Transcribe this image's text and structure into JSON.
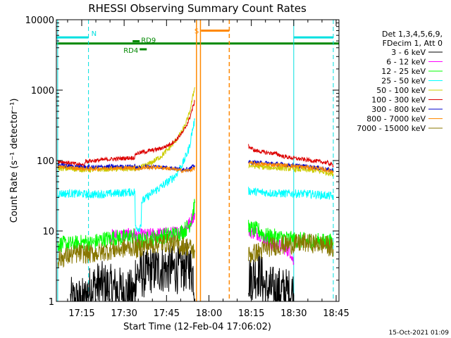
{
  "chart_data": {
    "type": "line",
    "title": "RHESSI Observing Summary Count Rates",
    "xlabel": "Start Time (12-Feb-04 17:06:02)",
    "ylabel": "Count Rate (s⁻¹ detector⁻¹)",
    "x_range_min": [
      6.03,
      106
    ],
    "ylim": [
      1,
      10000
    ],
    "y_scale": "log",
    "x_tick_labels": [
      "17:15",
      "17:30",
      "17:45",
      "18:00",
      "18:15",
      "18:30",
      "18:45"
    ],
    "x_tick_min": [
      15,
      30,
      45,
      60,
      75,
      90,
      105
    ],
    "y_tick_labels": [
      "1",
      "10",
      "100",
      "1000",
      "10000"
    ],
    "y_tick_values": [
      1,
      10,
      100,
      1000,
      10000
    ],
    "legend": {
      "placement": "right",
      "header": [
        "Det 1,3,4,5,6,9,",
        "FDecim 1, Att 0"
      ],
      "entries": [
        {
          "label": "3 - 6 keV",
          "color": "#000000"
        },
        {
          "label": "6 - 12 keV",
          "color": "#ff00ff"
        },
        {
          "label": "12 - 25 keV",
          "color": "#00ff00"
        },
        {
          "label": "25 - 50 keV",
          "color": "#00ffff"
        },
        {
          "label": "50 - 100 keV",
          "color": "#cccc00"
        },
        {
          "label": "100 - 300 keV",
          "color": "#dd0000"
        },
        {
          "label": "300 - 800 keV",
          "color": "#0000cc"
        },
        {
          "label": "800 - 7000 keV",
          "color": "#ff8800"
        },
        {
          "label": "7000 - 15000 keV",
          "color": "#887700"
        }
      ]
    },
    "flags": [
      {
        "label": "N",
        "color": "#00e0e0",
        "segments": [
          [
            6.03,
            17.4
          ],
          [
            90.0,
            104.0
          ]
        ],
        "y": 5600
      },
      {
        "label": "S",
        "color": "#ff8800",
        "segments": [
          [
            57.2,
            67.2
          ]
        ],
        "y": 7000
      },
      {
        "label": "",
        "color": "#008800",
        "segments": [
          [
            6.03,
            106
          ]
        ],
        "y": 4600
      },
      {
        "label": "RD9",
        "color": "#008800",
        "segments": [
          [
            33.0,
            35.5
          ]
        ],
        "y": 4950
      },
      {
        "label": "RD4",
        "color": "#008800",
        "segments": [
          [
            35.5,
            38.0
          ]
        ],
        "y": 3800
      }
    ],
    "vertical_markers": [
      {
        "color": "#00e0e0",
        "style": "solid",
        "x": 6.5
      },
      {
        "color": "#00e0e0",
        "style": "dashed",
        "x": 17.4
      },
      {
        "color": "#00e0e0",
        "style": "solid",
        "x": 90.0
      },
      {
        "color": "#00e0e0",
        "style": "dashed",
        "x": 104.0
      },
      {
        "color": "#ff8800",
        "style": "solid",
        "x": 55.6
      },
      {
        "color": "#ff8800",
        "style": "solid",
        "x": 57.0
      },
      {
        "color": "#ff8800",
        "style": "dashed",
        "x": 67.2
      }
    ],
    "series": [
      {
        "name": "3 - 6 keV",
        "color": "#000000",
        "noise": 0.35,
        "segments": [
          [
            [
              11.0,
              1.0
            ],
            [
              16.0,
              1.0
            ],
            [
              17.0,
              1.3
            ],
            [
              18.5,
              1.6
            ],
            [
              22.0,
              1.7
            ],
            [
              26.0,
              1.5
            ],
            [
              29.0,
              1.4
            ],
            [
              32.0,
              1.3
            ],
            [
              33.8,
              1.3
            ],
            [
              34.0,
              2.5
            ],
            [
              38.0,
              2.4
            ],
            [
              39.0,
              2.8
            ],
            [
              44.0,
              2.9
            ],
            [
              50.0,
              2.8
            ],
            [
              53.0,
              3.3
            ],
            [
              54.5,
              2.4
            ],
            [
              55.0,
              1.0
            ]
          ],
          [
            [
              74.0,
              2.2
            ],
            [
              78.0,
              2.5
            ],
            [
              80.0,
              1.5
            ],
            [
              86.0,
              1.4
            ],
            [
              90.0,
              1.3
            ]
          ]
        ]
      },
      {
        "name": "6 - 12 keV",
        "color": "#ff00ff",
        "noise": 0.1,
        "segments": [
          [
            [
              25.0,
              8.5
            ],
            [
              30.0,
              8.7
            ],
            [
              33.8,
              8.8
            ],
            [
              34.0,
              8.5
            ],
            [
              38.0,
              8.7
            ],
            [
              42.0,
              9.0
            ],
            [
              46.0,
              9.2
            ],
            [
              49.0,
              9.5
            ],
            [
              51.0,
              10.5
            ],
            [
              53.0,
              12.5
            ],
            [
              54.0,
              15.0
            ],
            [
              55.0,
              18.0
            ]
          ],
          [
            [
              74.0,
              10.0
            ],
            [
              78.0,
              9.0
            ],
            [
              82.0,
              6.5
            ],
            [
              86.0,
              6.0
            ],
            [
              89.0,
              5.0
            ],
            [
              90.0,
              3.5
            ]
          ]
        ]
      },
      {
        "name": "12 - 25 keV",
        "color": "#00ff00",
        "noise": 0.12,
        "segments": [
          [
            [
              6.5,
              6.5
            ],
            [
              12.0,
              6.5
            ],
            [
              17.0,
              7.0
            ],
            [
              18.0,
              6.6
            ],
            [
              22.0,
              7.5
            ],
            [
              26.0,
              8.0
            ],
            [
              30.0,
              8.0
            ],
            [
              33.8,
              8.5
            ],
            [
              34.0,
              7.0
            ],
            [
              38.0,
              7.5
            ],
            [
              40.0,
              7.8
            ],
            [
              44.0,
              8.5
            ],
            [
              48.0,
              9.0
            ],
            [
              51.0,
              10.0
            ],
            [
              53.0,
              12.0
            ],
            [
              54.0,
              16.0
            ],
            [
              55.0,
              25.0
            ]
          ],
          [
            [
              74.0,
              11.0
            ],
            [
              78.0,
              10.0
            ],
            [
              80.0,
              8.5
            ],
            [
              86.0,
              8.0
            ],
            [
              90.0,
              7.5
            ],
            [
              96.0,
              7.2
            ],
            [
              104.0,
              7.0
            ]
          ]
        ]
      },
      {
        "name": "25 - 50 keV",
        "color": "#00ffff",
        "noise": 0.06,
        "segments": [
          [
            [
              6.5,
              34.0
            ],
            [
              12.0,
              34.0
            ],
            [
              18.0,
              33.0
            ],
            [
              24.0,
              33.5
            ],
            [
              30.0,
              35.0
            ],
            [
              33.8,
              36.0
            ],
            [
              34.0,
              11.0
            ],
            [
              35.5,
              11.0
            ],
            [
              36.0,
              13.0
            ],
            [
              36.2,
              26.0
            ],
            [
              40.0,
              35.0
            ],
            [
              44.0,
              45.0
            ],
            [
              48.0,
              60.0
            ],
            [
              51.0,
              95.0
            ],
            [
              53.0,
              150.0
            ],
            [
              54.0,
              250.0
            ],
            [
              55.0,
              380.0
            ]
          ],
          [
            [
              74.0,
              37.0
            ],
            [
              80.0,
              35.0
            ],
            [
              86.0,
              34.0
            ],
            [
              92.0,
              34.0
            ],
            [
              98.0,
              33.0
            ],
            [
              104.0,
              31.0
            ]
          ]
        ]
      },
      {
        "name": "50 - 100 keV",
        "color": "#cccc00",
        "noise": 0.04,
        "segments": [
          [
            [
              6.5,
              78.0
            ],
            [
              12.0,
              76.0
            ],
            [
              18.0,
              74.0
            ],
            [
              24.0,
              76.0
            ],
            [
              30.0,
              76.0
            ],
            [
              33.8,
              76.0
            ],
            [
              34.0,
              75.0
            ],
            [
              36.0,
              80.0
            ],
            [
              38.0,
              86.0
            ],
            [
              40.0,
              95.0
            ],
            [
              43.0,
              115.0
            ],
            [
              46.0,
              150.0
            ],
            [
              49.0,
              210.0
            ],
            [
              51.0,
              280.0
            ],
            [
              53.0,
              450.0
            ],
            [
              54.0,
              700.0
            ],
            [
              55.0,
              1100.0
            ]
          ],
          [
            [
              74.0,
              85.0
            ],
            [
              80.0,
              80.0
            ],
            [
              86.0,
              78.0
            ],
            [
              92.0,
              75.0
            ],
            [
              98.0,
              72.0
            ],
            [
              104.0,
              65.0
            ]
          ]
        ]
      },
      {
        "name": "100 - 300 keV",
        "color": "#dd0000",
        "noise": 0.03,
        "segments": [
          [
            [
              6.5,
              98.0
            ],
            [
              10.0,
              93.0
            ],
            [
              14.0,
              88.0
            ],
            [
              16.0,
              86.0
            ],
            [
              16.2,
              98.0
            ],
            [
              20.0,
              100.0
            ],
            [
              24.0,
              104.0
            ],
            [
              28.0,
              106.0
            ],
            [
              30.0,
              108.0
            ],
            [
              33.8,
              110.0
            ],
            [
              34.0,
              125.0
            ],
            [
              38.0,
              135.0
            ],
            [
              42.0,
              145.0
            ],
            [
              45.0,
              160.0
            ],
            [
              48.0,
              190.0
            ],
            [
              51.0,
              260.0
            ],
            [
              53.0,
              380.0
            ],
            [
              54.0,
              520.0
            ],
            [
              55.0,
              700.0
            ]
          ],
          [
            [
              74.0,
              160.0
            ],
            [
              76.0,
              140.0
            ],
            [
              80.0,
              130.0
            ],
            [
              84.0,
              125.0
            ],
            [
              86.0,
              115.0
            ],
            [
              90.0,
              108.0
            ],
            [
              94.0,
              103.0
            ],
            [
              98.0,
              98.0
            ],
            [
              102.0,
              93.0
            ],
            [
              104.0,
              85.0
            ]
          ]
        ]
      },
      {
        "name": "300 - 800 keV",
        "color": "#0000cc",
        "noise": 0.03,
        "segments": [
          [
            [
              6.5,
              87.0
            ],
            [
              12.0,
              82.0
            ],
            [
              18.0,
              80.0
            ],
            [
              24.0,
              82.0
            ],
            [
              30.0,
              82.0
            ],
            [
              33.8,
              83.0
            ],
            [
              34.0,
              78.0
            ],
            [
              38.0,
              82.0
            ],
            [
              42.0,
              82.0
            ],
            [
              46.0,
              79.0
            ],
            [
              50.0,
              75.0
            ],
            [
              53.0,
              76.0
            ],
            [
              55.0,
              85.0
            ]
          ],
          [
            [
              74.0,
              95.0
            ],
            [
              80.0,
              92.0
            ],
            [
              86.0,
              88.0
            ],
            [
              92.0,
              84.0
            ],
            [
              98.0,
              80.0
            ],
            [
              104.0,
              72.0
            ]
          ]
        ]
      },
      {
        "name": "800 - 7000 keV",
        "color": "#ff8800",
        "noise": 0.03,
        "segments": [
          [
            [
              6.5,
              82.0
            ],
            [
              12.0,
              78.0
            ],
            [
              18.0,
              76.0
            ],
            [
              24.0,
              78.0
            ],
            [
              30.0,
              78.0
            ],
            [
              33.8,
              80.0
            ],
            [
              34.0,
              76.0
            ],
            [
              38.0,
              80.0
            ],
            [
              42.0,
              80.0
            ],
            [
              46.0,
              77.0
            ],
            [
              50.0,
              72.0
            ],
            [
              53.0,
              72.0
            ],
            [
              55.0,
              78.0
            ]
          ],
          [
            [
              74.0,
              92.0
            ],
            [
              80.0,
              88.0
            ],
            [
              86.0,
              86.0
            ],
            [
              92.0,
              82.0
            ],
            [
              98.0,
              78.0
            ],
            [
              104.0,
              70.0
            ]
          ]
        ]
      },
      {
        "name": "7000 - 15000 keV",
        "color": "#887700",
        "noise": 0.14,
        "segments": [
          [
            [
              6.5,
              4.0
            ],
            [
              10.0,
              4.4
            ],
            [
              14.0,
              4.8
            ],
            [
              18.0,
              4.7
            ],
            [
              22.0,
              5.0
            ],
            [
              26.0,
              5.4
            ],
            [
              30.0,
              5.7
            ],
            [
              33.8,
              6.0
            ],
            [
              34.0,
              5.5
            ],
            [
              38.0,
              6.2
            ],
            [
              42.0,
              6.6
            ],
            [
              46.0,
              6.8
            ],
            [
              50.0,
              6.2
            ],
            [
              53.0,
              6.0
            ],
            [
              55.0,
              5.0
            ]
          ],
          [
            [
              74.0,
              4.5
            ],
            [
              78.0,
              5.2
            ],
            [
              82.0,
              6.0
            ],
            [
              86.0,
              6.3
            ],
            [
              90.0,
              6.5
            ],
            [
              94.0,
              6.8
            ],
            [
              98.0,
              6.6
            ],
            [
              102.0,
              6.2
            ],
            [
              104.0,
              5.5
            ]
          ]
        ]
      }
    ]
  },
  "timestamp": "15-Oct-2021 01:09"
}
